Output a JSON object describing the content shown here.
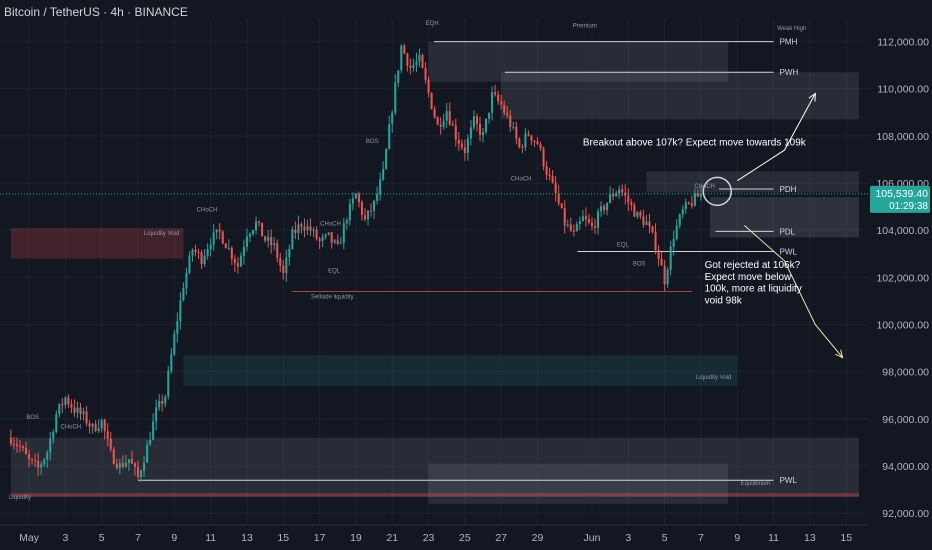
{
  "header": {
    "title": "Bitcoin / TetherUS · 4h · BINANCE"
  },
  "price_tag": {
    "price": "105,539.40",
    "countdown": "01:29:38"
  },
  "colors": {
    "background": "#131722",
    "up": "#26a69a",
    "down": "#ef5350",
    "grid": "#1e222d",
    "axis_text": "#b2b5be",
    "price_tag": "#26a69a"
  },
  "chart_data": {
    "type": "candlestick",
    "symbol": "Bitcoin / TetherUS",
    "interval": "4h",
    "exchange": "BINANCE",
    "ylim": [
      91500,
      113000
    ],
    "y_ticks": [
      92000,
      94000,
      96000,
      98000,
      100000,
      102000,
      104000,
      106000,
      108000,
      110000,
      112000
    ],
    "y_tick_labels": [
      "92,000.00",
      "94,000.00",
      "96,000.00",
      "98,000.00",
      "100,000.00",
      "102,000.00",
      "104,000.00",
      "106,000.00",
      "108,000.00",
      "110,000.00",
      "112,000.00"
    ],
    "x_ticks": [
      "May",
      "3",
      "5",
      "7",
      "9",
      "11",
      "13",
      "15",
      "17",
      "19",
      "21",
      "23",
      "25",
      "27",
      "29",
      "Jun",
      "3",
      "5",
      "7",
      "9",
      "11",
      "13",
      "15"
    ],
    "x_tick_days": [
      1,
      3,
      5,
      7,
      9,
      11,
      13,
      15,
      17,
      19,
      21,
      23,
      25,
      27,
      29,
      32,
      34,
      36,
      38,
      40,
      42,
      44,
      46
    ],
    "current_price": 105539.4,
    "price_path": [
      [
        0.0,
        95200
      ],
      [
        0.5,
        94800
      ],
      [
        1.0,
        94200
      ],
      [
        1.5,
        93900
      ],
      [
        2.0,
        94600
      ],
      [
        2.5,
        96200
      ],
      [
        3.0,
        96900
      ],
      [
        3.5,
        96400
      ],
      [
        4.0,
        96100
      ],
      [
        4.5,
        95600
      ],
      [
        5.0,
        95900
      ],
      [
        5.5,
        94500
      ],
      [
        6.0,
        94000
      ],
      [
        6.5,
        94300
      ],
      [
        7.0,
        93500
      ],
      [
        7.5,
        94800
      ],
      [
        8.0,
        96300
      ],
      [
        8.5,
        97000
      ],
      [
        9.0,
        99500
      ],
      [
        9.5,
        101700
      ],
      [
        10.0,
        103200
      ],
      [
        10.5,
        102800
      ],
      [
        11.0,
        103600
      ],
      [
        11.5,
        103900
      ],
      [
        12.0,
        103200
      ],
      [
        12.5,
        102500
      ],
      [
        13.0,
        103900
      ],
      [
        13.5,
        104300
      ],
      [
        14.0,
        103600
      ],
      [
        14.5,
        103300
      ],
      [
        15.0,
        102100
      ],
      [
        15.5,
        103800
      ],
      [
        16.0,
        104300
      ],
      [
        16.5,
        104000
      ],
      [
        17.0,
        103500
      ],
      [
        17.5,
        103700
      ],
      [
        18.0,
        103200
      ],
      [
        18.5,
        104600
      ],
      [
        19.0,
        105500
      ],
      [
        19.5,
        104400
      ],
      [
        20.0,
        105100
      ],
      [
        20.5,
        106400
      ],
      [
        21.0,
        109200
      ],
      [
        21.5,
        111800
      ],
      [
        22.0,
        110900
      ],
      [
        22.5,
        111200
      ],
      [
        23.0,
        109800
      ],
      [
        23.5,
        108400
      ],
      [
        24.0,
        109100
      ],
      [
        24.5,
        108000
      ],
      [
        25.0,
        107400
      ],
      [
        25.5,
        108600
      ],
      [
        26.0,
        108000
      ],
      [
        26.5,
        109700
      ],
      [
        27.0,
        109300
      ],
      [
        27.5,
        108500
      ],
      [
        28.0,
        107500
      ],
      [
        28.5,
        108100
      ],
      [
        29.0,
        107700
      ],
      [
        29.5,
        106500
      ],
      [
        30.0,
        105500
      ],
      [
        30.5,
        104300
      ],
      [
        31.0,
        103800
      ],
      [
        31.5,
        104500
      ],
      [
        32.0,
        104100
      ],
      [
        32.5,
        104800
      ],
      [
        33.0,
        105400
      ],
      [
        33.5,
        105800
      ],
      [
        34.0,
        105200
      ],
      [
        34.5,
        104600
      ],
      [
        35.0,
        104300
      ],
      [
        35.5,
        103400
      ],
      [
        36.0,
        101900
      ],
      [
        36.5,
        103800
      ],
      [
        37.0,
        104800
      ],
      [
        37.5,
        105200
      ],
      [
        38.0,
        105539
      ]
    ],
    "horizontal_levels": [
      {
        "label": "PMH",
        "price": 112000,
        "from_day": 23.3,
        "to_day": 42
      },
      {
        "label": "PWH",
        "price": 110700,
        "from_day": 27.2,
        "to_day": 42
      },
      {
        "label": "PDH",
        "price": 105750,
        "from_day": 39,
        "to_day": 42
      },
      {
        "label": "PDL",
        "price": 103950,
        "from_day": 38.8,
        "to_day": 42
      },
      {
        "label": "PWL",
        "price": 103100,
        "from_day": 31.2,
        "to_day": 42
      },
      {
        "label": "PWL",
        "price": 93400,
        "from_day": 7,
        "to_day": 42
      }
    ],
    "zones": [
      {
        "name": "premium",
        "from_day": 23,
        "to_day": 39.5,
        "top": 112000,
        "bottom": 110300,
        "color": "rgba(120,123,134,0.22)"
      },
      {
        "name": "pwh-zone",
        "from_day": 27,
        "to_day": 46.7,
        "top": 110700,
        "bottom": 108700,
        "color": "rgba(120,123,134,0.22)"
      },
      {
        "name": "pdh-zone",
        "from_day": 35,
        "to_day": 46.7,
        "top": 106500,
        "bottom": 105600,
        "color": "rgba(120,123,134,0.22)"
      },
      {
        "name": "pdl-zone",
        "from_day": 38.5,
        "to_day": 46.7,
        "top": 105400,
        "bottom": 103700,
        "color": "rgba(120,123,134,0.28)"
      },
      {
        "name": "liquidity-void-top",
        "from_day": 0,
        "to_day": 9.5,
        "top": 104100,
        "bottom": 102800,
        "color": "rgba(239,83,80,0.22)"
      },
      {
        "name": "liquidity-void-mid",
        "from_day": 9.5,
        "to_day": 40,
        "top": 98700,
        "bottom": 97400,
        "color": "rgba(38,166,154,0.14)"
      },
      {
        "name": "equilibrium-zone",
        "from_day": 0,
        "to_day": 46.7,
        "top": 95200,
        "bottom": 92700,
        "color": "rgba(120,123,134,0.22)"
      },
      {
        "name": "equilibrium-box",
        "from_day": 23,
        "to_day": 39.5,
        "top": 94100,
        "bottom": 92400,
        "color": "rgba(120,123,134,0.22)"
      },
      {
        "name": "liquidity-void-bottom",
        "from_day": 0,
        "to_day": 46.7,
        "top": 92850,
        "bottom": 92700,
        "color": "rgba(239,83,80,0.35)"
      }
    ],
    "annotations": [
      {
        "text": "Breakout above 107k? Expect move towards 109k",
        "day": 31.5,
        "price": 107600
      },
      {
        "text": "Got rejected at 106k?",
        "day": 38.2,
        "price": 102400
      },
      {
        "text": "Expect move below",
        "day": 38.2,
        "price": 101900
      },
      {
        "text": "100k, more at liquidity",
        "day": 38.2,
        "price": 101400
      },
      {
        "text": "void 98k",
        "day": 38.2,
        "price": 100900
      }
    ],
    "small_labels": [
      {
        "text": "Premium",
        "day": 31.6,
        "price": 112600
      },
      {
        "text": "Weak High",
        "day": 43.0,
        "price": 112500
      },
      {
        "text": "BOS",
        "day": 19.9,
        "price": 107700
      },
      {
        "text": "CHoCH",
        "day": 10.8,
        "price": 104800
      },
      {
        "text": "CHoCH",
        "day": 17.6,
        "price": 104200
      },
      {
        "text": "CHoCH",
        "day": 28.1,
        "price": 106100
      },
      {
        "text": "CHoCH",
        "day": 38.2,
        "price": 105800
      },
      {
        "text": "CHoCH",
        "day": 3.3,
        "price": 95600
      },
      {
        "text": "BOS",
        "day": 1.2,
        "price": 96000
      },
      {
        "text": "EQL",
        "day": 33.7,
        "price": 103300
      },
      {
        "text": "EQL",
        "day": 17.8,
        "price": 102200
      },
      {
        "text": "BOS",
        "day": 34.6,
        "price": 102500
      },
      {
        "text": "Sellside liquidity",
        "day": 17.7,
        "price": 101100
      },
      {
        "text": "Liquidity Void",
        "day": 8.3,
        "price": 103800
      },
      {
        "text": "Liquidity Void",
        "day": 38.7,
        "price": 97700
      },
      {
        "text": "Equilibrium",
        "day": 41.0,
        "price": 93200
      },
      {
        "text": "Liquidity",
        "day": 0.5,
        "price": 92600
      },
      {
        "text": "EQH",
        "day": 23.2,
        "price": 112700
      }
    ],
    "projection_up": [
      [
        40.0,
        106100
      ],
      [
        42.6,
        107400
      ],
      [
        44.3,
        109800
      ]
    ],
    "projection_down": [
      [
        40.4,
        104200
      ],
      [
        42.6,
        102700
      ],
      [
        44.3,
        100000
      ],
      [
        45.8,
        98600
      ]
    ]
  }
}
